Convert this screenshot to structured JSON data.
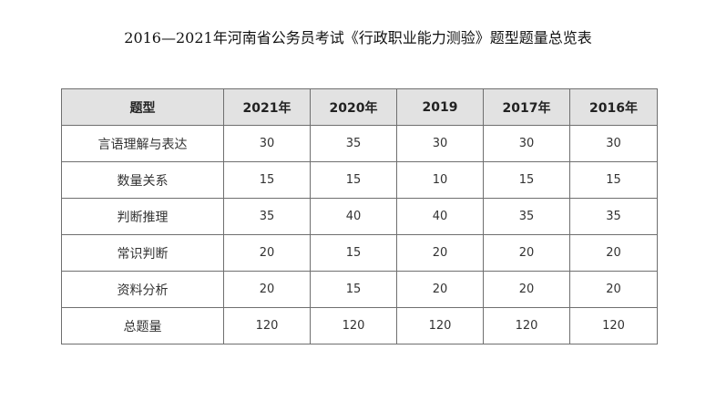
{
  "title": "2016—2021年河南省公务员考试《行政职业能力测验》题型题量总览表",
  "table": {
    "headers": [
      "题型",
      "2021年",
      "2020年",
      "2019",
      "2017年",
      "2016年"
    ],
    "rows": [
      [
        "言语理解与表达",
        "30",
        "35",
        "30",
        "30",
        "30"
      ],
      [
        "数量关系",
        "15",
        "15",
        "10",
        "15",
        "15"
      ],
      [
        "判断推理",
        "35",
        "40",
        "40",
        "35",
        "35"
      ],
      [
        "常识判断",
        "20",
        "15",
        "20",
        "20",
        "20"
      ],
      [
        "资料分析",
        "20",
        "15",
        "20",
        "20",
        "20"
      ],
      [
        "总题量",
        "120",
        "120",
        "120",
        "120",
        "120"
      ]
    ]
  },
  "colors": {
    "header_background": "#e2e2e2",
    "border": "#6f6f6f"
  }
}
